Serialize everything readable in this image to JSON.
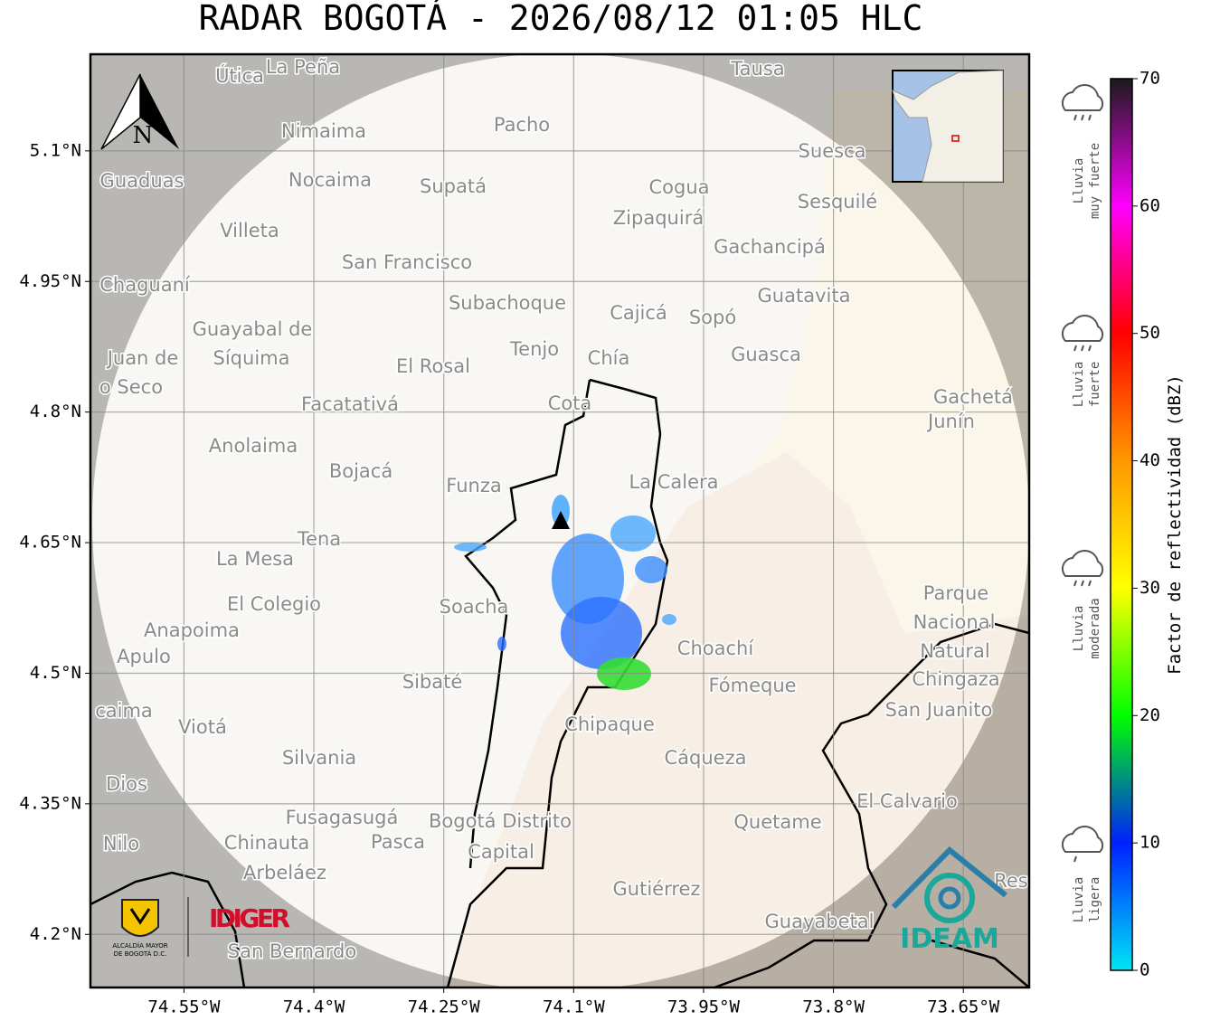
{
  "title": "RADAR BOGOTÁ - 2026/08/12 01:05 HLC",
  "map": {
    "lon_range": [
      -74.658,
      -73.574
    ],
    "lat_range": [
      4.139,
      5.211
    ],
    "grid": true,
    "north_label": "N",
    "lon_ticks": [
      {
        "value": -74.55,
        "label": "74.55°W"
      },
      {
        "value": -74.4,
        "label": "74.4°W"
      },
      {
        "value": -74.25,
        "label": "74.25°W"
      },
      {
        "value": -74.1,
        "label": "74.1°W"
      },
      {
        "value": -73.95,
        "label": "73.95°W"
      },
      {
        "value": -73.8,
        "label": "73.8°W"
      },
      {
        "value": -73.65,
        "label": "73.65°W"
      }
    ],
    "lat_ticks": [
      {
        "value": 5.1,
        "label": "5.1°N"
      },
      {
        "value": 4.95,
        "label": "4.95°N"
      },
      {
        "value": 4.8,
        "label": "4.8°N"
      },
      {
        "value": 4.65,
        "label": "4.65°N"
      },
      {
        "value": 4.5,
        "label": "4.5°N"
      },
      {
        "value": 4.35,
        "label": "4.35°N"
      },
      {
        "value": 4.2,
        "label": "4.2°N"
      }
    ],
    "places": [
      "Útica",
      "La Peña",
      "Tausa",
      "Pacho",
      "Nimaima",
      "Guaduas",
      "Nocaima",
      "Supatá",
      "Cogua",
      "Suesca",
      "Sesquilé",
      "Zipaquirá",
      "Villeta",
      "Gachancipá",
      "San Francisco",
      "Chaguaní",
      "Guatavita",
      "Subachoque",
      "Cajicá",
      "Sopó",
      "Guayabal de",
      "Síquima",
      "Tenjo",
      "Chía",
      "Guasca",
      "Juan de",
      "o Seco",
      "El Rosal",
      "Facatativá",
      "Cota",
      "Gachetá",
      "Junín",
      "Anolaima",
      "Bojacá",
      "Funza",
      "La Calera",
      "Tena",
      "La Mesa",
      "El Colegio",
      "Soacha",
      "Parque",
      "Nacional",
      "Natural",
      "Chingaza",
      "Anapoima",
      "Apulo",
      "Choachí",
      "Sibaté",
      "Fómeque",
      "San Juanito",
      "caima",
      "Viotá",
      "Chipaque",
      "Silvania",
      "Cáqueza",
      "Dios",
      "El Calvario",
      "Fusagasugá",
      "Bogotá Distrito",
      "Capital",
      "Quetame",
      "Nilo",
      "Chinauta",
      "Pasca",
      "Arbeláez",
      "Gutiérrez",
      "Res",
      "Guayabetal",
      "San Bernardo"
    ]
  },
  "colorbar": {
    "label": "Factor de reflectividad (dBZ)",
    "lim": [
      0,
      70
    ],
    "ticks": [
      0,
      10,
      20,
      30,
      40,
      50,
      60,
      70
    ],
    "colors": [
      "#00e5f5",
      "#0020ff",
      "#00ff00",
      "#ffff00",
      "#ff9900",
      "#ff0000",
      "#ff00ff",
      "#1a1a1a"
    ]
  },
  "rain_legend": [
    {
      "line1": "Lluvia",
      "line2": "muy fuerte"
    },
    {
      "line1": "Lluvia",
      "line2": "fuerte"
    },
    {
      "line1": "Lluvia",
      "line2": "moderada"
    },
    {
      "line1": "Lluvia",
      "line2": "ligera"
    }
  ],
  "logos": {
    "alcaldia_1": "ALCALDÍA MAYOR",
    "alcaldia_2": "DE BOGOTÁ D.C.",
    "idiger": "IDIGER",
    "ideam": "IDEAM"
  }
}
